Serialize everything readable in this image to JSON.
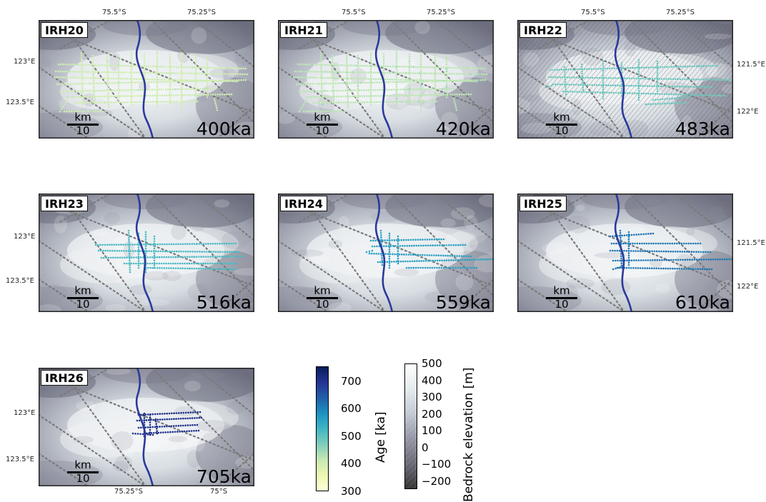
{
  "panels": [
    {
      "label": "IRH20",
      "age": "400ka",
      "age_value": 400,
      "layout": "a"
    },
    {
      "label": "IRH21",
      "age": "420ka",
      "age_value": 420,
      "layout": "a"
    },
    {
      "label": "IRH22",
      "age": "483ka",
      "age_value": 483,
      "layout": "b"
    },
    {
      "label": "IRH23",
      "age": "516ka",
      "age_value": 516,
      "layout": "c"
    },
    {
      "label": "IRH24",
      "age": "559ka",
      "age_value": 559,
      "layout": "d"
    },
    {
      "label": "IRH25",
      "age": "610ka",
      "age_value": 610,
      "layout": "e"
    },
    {
      "label": "IRH26",
      "age": "705ka",
      "age_value": 705,
      "layout": "f"
    }
  ],
  "scalebar": {
    "unit": "km",
    "value": "10"
  },
  "lat_top_labels": [
    "75.5°S",
    "75.25°S"
  ],
  "lat_bottom_labels": [
    "75.25°S",
    "75°S"
  ],
  "lon_left_labels": [
    "123°E",
    "123.5°E"
  ],
  "lon_right_labels": [
    "121.5°E",
    "122°E"
  ],
  "colorbar_age": {
    "title": "Age [ka]",
    "ticks": [
      "300",
      "400",
      "500",
      "600",
      "700"
    ],
    "range": [
      300,
      750
    ],
    "colors": [
      "#ffffd9",
      "#edf8b1",
      "#c7e9b4",
      "#7fcdbb",
      "#41b6c4",
      "#1d91c0",
      "#225ea8",
      "#253494",
      "#081d58"
    ]
  },
  "colorbar_bedrock": {
    "title": "Bedrock elevation [m]",
    "ticks": [
      "500",
      "400",
      "300",
      "200",
      "100",
      "0",
      "−100",
      "−200"
    ],
    "range": [
      -250,
      500
    ],
    "colors": [
      "#333333",
      "#6a6a75",
      "#9595a5",
      "#c2c9d3",
      "#e5ebee",
      "#ffffff"
    ]
  },
  "colors": {
    "river": "#2b3a9b",
    "grid": "#7a7a7a"
  }
}
